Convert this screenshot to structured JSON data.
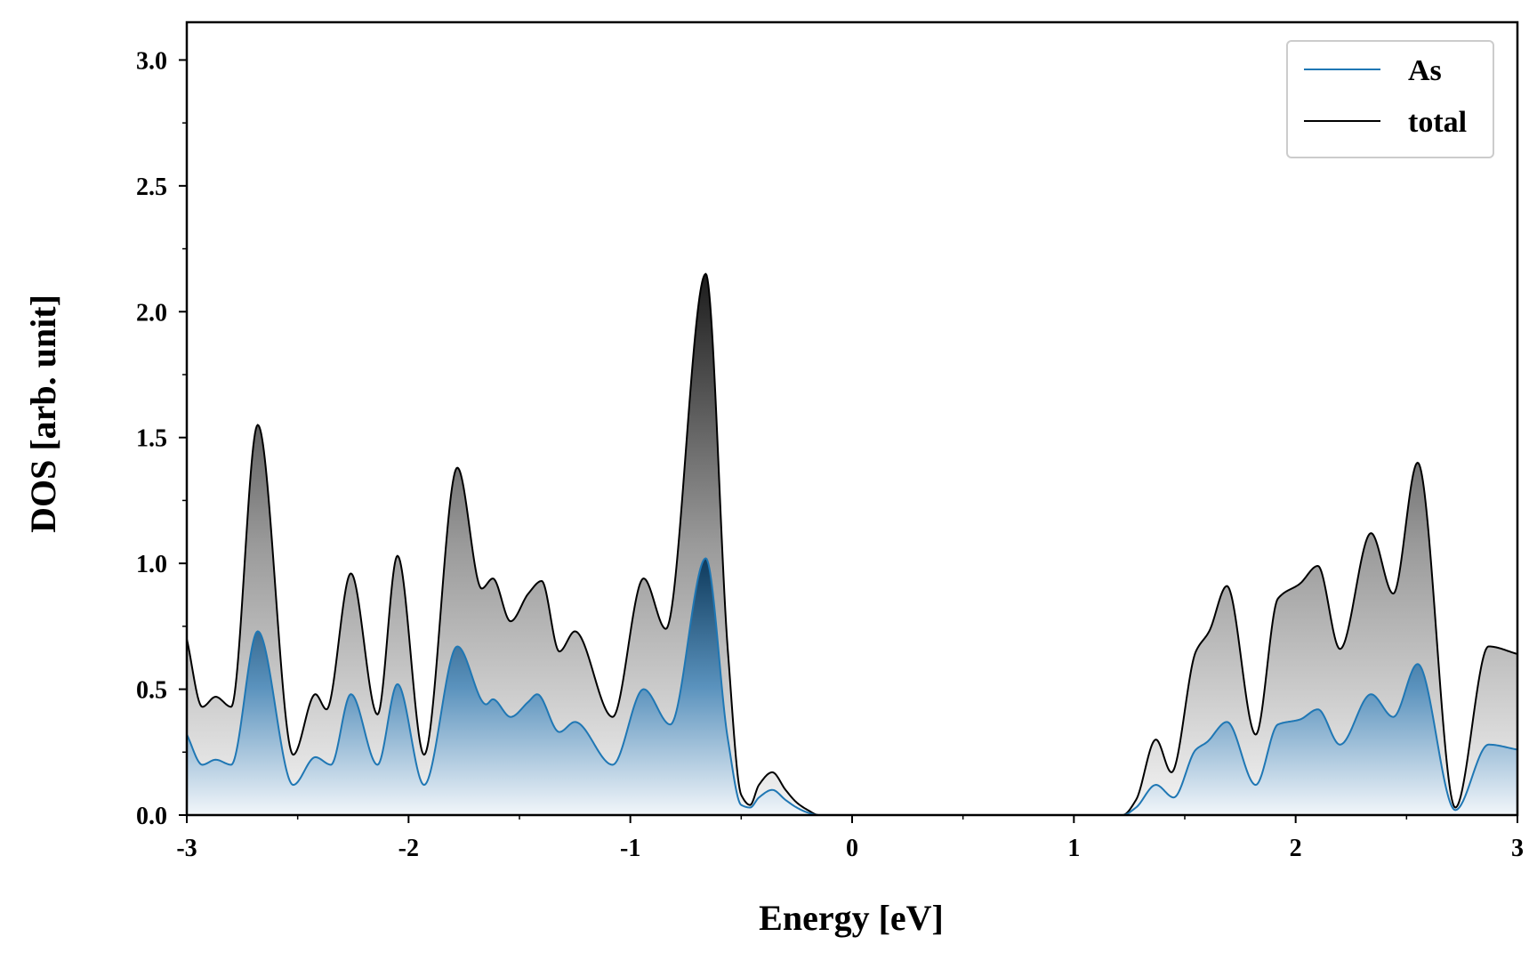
{
  "chart_data": {
    "type": "area",
    "title": "",
    "xlabel": "Energy [eV]",
    "ylabel": "DOS [arb. unit]",
    "xlim": [
      -3,
      3
    ],
    "ylim": [
      0,
      3.15
    ],
    "x_ticks": [
      -3,
      -2,
      -1,
      0,
      1,
      2,
      3
    ],
    "x_tick_labels": [
      "-3",
      "-2",
      "-1",
      "0",
      "1",
      "2",
      "3"
    ],
    "x_minor_step": 0.5,
    "y_ticks": [
      0.0,
      0.5,
      1.0,
      1.5,
      2.0,
      2.5,
      3.0
    ],
    "y_tick_labels": [
      "0.0",
      "0.5",
      "1.0",
      "1.5",
      "2.0",
      "2.5",
      "3.0"
    ],
    "y_minor_step": 0.25,
    "grid": false,
    "legend_position": "top-right",
    "series": [
      {
        "name": "As",
        "color": "#1f77b4",
        "fill": "gradient-blue",
        "x": [
          -3.0,
          -2.93,
          -2.87,
          -2.8,
          -2.68,
          -2.52,
          -2.42,
          -2.35,
          -2.26,
          -2.14,
          -2.05,
          -1.93,
          -1.78,
          -1.65,
          -1.62,
          -1.54,
          -1.46,
          -1.42,
          -1.32,
          -1.25,
          -1.08,
          -0.94,
          -0.82,
          -0.66,
          -0.56,
          -0.5,
          -0.46,
          -0.42,
          -0.36,
          -0.3,
          -0.25,
          -0.2,
          -0.15,
          1.22,
          1.28,
          1.37,
          1.45,
          1.55,
          1.6,
          1.69,
          1.82,
          1.92,
          2.02,
          2.1,
          2.2,
          2.34,
          2.44,
          2.55,
          2.72,
          2.87,
          3.0
        ],
        "y": [
          0.32,
          0.2,
          0.22,
          0.2,
          0.73,
          0.12,
          0.23,
          0.2,
          0.48,
          0.2,
          0.52,
          0.12,
          0.67,
          0.44,
          0.46,
          0.39,
          0.45,
          0.48,
          0.33,
          0.37,
          0.2,
          0.5,
          0.36,
          1.02,
          0.3,
          0.04,
          0.03,
          0.07,
          0.1,
          0.06,
          0.03,
          0.01,
          0.0,
          0.0,
          0.03,
          0.12,
          0.07,
          0.26,
          0.29,
          0.37,
          0.12,
          0.36,
          0.38,
          0.42,
          0.28,
          0.48,
          0.39,
          0.6,
          0.02,
          0.28,
          0.26
        ]
      },
      {
        "name": "total",
        "color": "#000000",
        "fill": "gradient-gray",
        "x": [
          -3.0,
          -2.93,
          -2.87,
          -2.8,
          -2.68,
          -2.52,
          -2.42,
          -2.37,
          -2.26,
          -2.14,
          -2.05,
          -1.93,
          -1.78,
          -1.67,
          -1.62,
          -1.54,
          -1.46,
          -1.4,
          -1.32,
          -1.25,
          -1.08,
          -0.94,
          -0.84,
          -0.66,
          -0.56,
          -0.5,
          -0.46,
          -0.42,
          -0.36,
          -0.3,
          -0.25,
          -0.2,
          -0.15,
          1.22,
          1.28,
          1.37,
          1.44,
          1.55,
          1.61,
          1.69,
          1.82,
          1.92,
          2.02,
          2.1,
          2.2,
          2.34,
          2.44,
          2.55,
          2.72,
          2.87,
          3.0
        ],
        "y": [
          0.7,
          0.43,
          0.47,
          0.43,
          1.55,
          0.24,
          0.48,
          0.42,
          0.96,
          0.4,
          1.03,
          0.24,
          1.38,
          0.9,
          0.94,
          0.77,
          0.88,
          0.93,
          0.65,
          0.73,
          0.39,
          0.94,
          0.74,
          2.15,
          0.65,
          0.08,
          0.04,
          0.12,
          0.17,
          0.1,
          0.05,
          0.02,
          0.0,
          0.0,
          0.06,
          0.3,
          0.17,
          0.65,
          0.73,
          0.91,
          0.32,
          0.86,
          0.92,
          0.99,
          0.66,
          1.12,
          0.88,
          1.4,
          0.03,
          0.67,
          0.64
        ]
      }
    ]
  }
}
